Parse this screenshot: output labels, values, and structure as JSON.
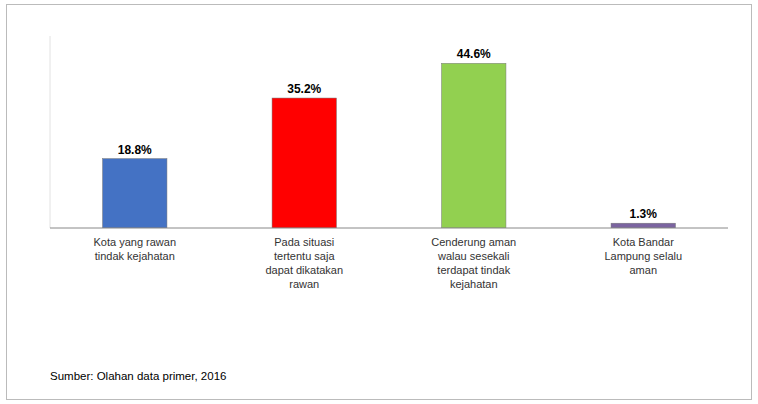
{
  "chart_data": {
    "type": "bar",
    "categories": [
      "Kota yang rawan\ntindak kejahatan",
      "Pada situasi\ntertentu saja\ndapat dikatakan\nrawan",
      "Cenderung aman\nwalau sesekali\nterdapat tindak\nkejahatan",
      "Kota Bandar\nLampung selalu\naman"
    ],
    "values": [
      18.8,
      35.2,
      44.6,
      1.3
    ],
    "value_labels": [
      "18.8%",
      "35.2%",
      "44.6%",
      "1.3%"
    ],
    "colors": [
      "#4472C4",
      "#FF0000",
      "#92D050",
      "#7B64A0"
    ],
    "ylim": [
      0,
      52
    ],
    "data_labels": true,
    "tick_labels": "x",
    "grid": false,
    "annotations": [
      "Sumber: Olahan data primer, 2016"
    ]
  }
}
